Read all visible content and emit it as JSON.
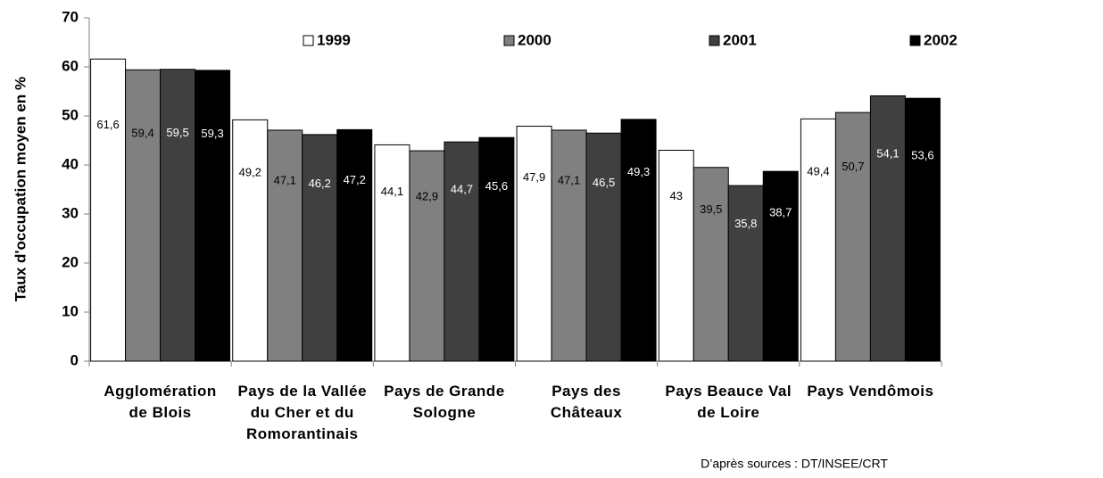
{
  "chart_data": {
    "type": "bar",
    "y_label": "Taux d'occupation moyen en %",
    "source": "D’après sources : DT/INSEE/CRT",
    "categories": [
      "Agglomération de Blois",
      "Pays de la Vallée du Cher et du Romorantinais",
      "Pays de Grande Sologne",
      "Pays des Châteaux",
      "Pays Beauce Val de Loire",
      "Pays Vendômois"
    ],
    "series": [
      {
        "name": "1999",
        "color": "#ffffff",
        "values": [
          61.6,
          49.2,
          44.1,
          47.9,
          43,
          49.4
        ],
        "value_labels": [
          "61,6",
          "49,2",
          "44,1",
          "47,9",
          "43",
          "49,4"
        ]
      },
      {
        "name": "2000",
        "color": "#808080",
        "values": [
          59.4,
          47.1,
          42.9,
          47.1,
          39.5,
          50.7
        ],
        "value_labels": [
          "59,4",
          "47,1",
          "42,9",
          "47,1",
          "39,5",
          "50,7"
        ]
      },
      {
        "name": "2001",
        "color": "#404040",
        "values": [
          59.5,
          46.2,
          44.7,
          46.5,
          35.8,
          54.1
        ],
        "value_labels": [
          "59,5",
          "46,2",
          "44,7",
          "46,5",
          "35,8",
          "54,1"
        ]
      },
      {
        "name": "2002",
        "color": "#000000",
        "values": [
          59.3,
          47.2,
          45.6,
          49.3,
          38.7,
          53.6
        ],
        "value_labels": [
          "59,3",
          "47,2",
          "45,6",
          "49,3",
          "38,7",
          "53,6"
        ]
      }
    ],
    "ylim": [
      0,
      70
    ],
    "yticks": [
      0,
      10,
      20,
      30,
      40,
      50,
      60,
      70
    ],
    "grid": false,
    "legend": "top"
  }
}
